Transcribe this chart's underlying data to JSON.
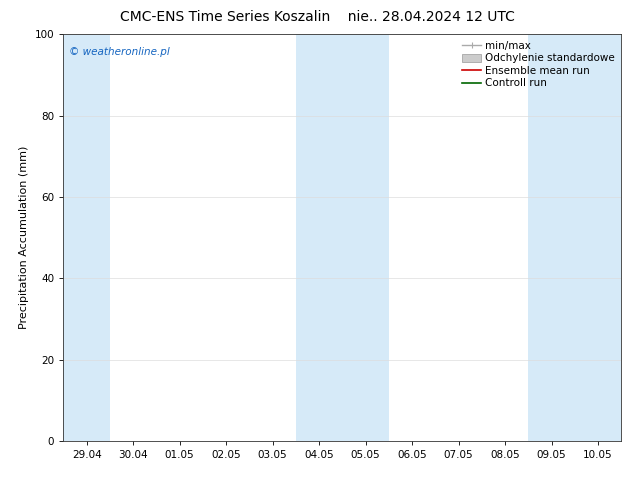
{
  "title_left": "CMC-ENS Time Series Koszalin",
  "title_right": "nie.. 28.04.2024 12 UTC",
  "ylabel": "Precipitation Accumulation (mm)",
  "ylim": [
    0,
    100
  ],
  "yticks": [
    0,
    20,
    40,
    60,
    80,
    100
  ],
  "xtick_labels": [
    "29.04",
    "30.04",
    "01.05",
    "02.05",
    "03.05",
    "04.05",
    "05.05",
    "06.05",
    "07.05",
    "08.05",
    "09.05",
    "10.05"
  ],
  "num_ticks": 12,
  "xlim": [
    0,
    11
  ],
  "shaded_regions": [
    {
      "xmin": -0.5,
      "xmax": 0.5,
      "color": "#d6eaf8"
    },
    {
      "xmin": 4.5,
      "xmax": 6.5,
      "color": "#d6eaf8"
    },
    {
      "xmin": 9.5,
      "xmax": 11.5,
      "color": "#d6eaf8"
    }
  ],
  "watermark": "© weatheronline.pl",
  "watermark_color": "#1565C0",
  "legend_labels": [
    "min/max",
    "Odchylenie standardowe",
    "Ensemble mean run",
    "Controll run"
  ],
  "minmax_color": "#aaaaaa",
  "odch_color": "#cccccc",
  "ensemble_color": "#cc0000",
  "control_color": "#006600",
  "background_color": "#ffffff",
  "grid_color": "#dddddd",
  "title_fontsize": 10,
  "ylabel_fontsize": 8,
  "tick_fontsize": 7.5,
  "legend_fontsize": 7.5,
  "watermark_fontsize": 7.5
}
